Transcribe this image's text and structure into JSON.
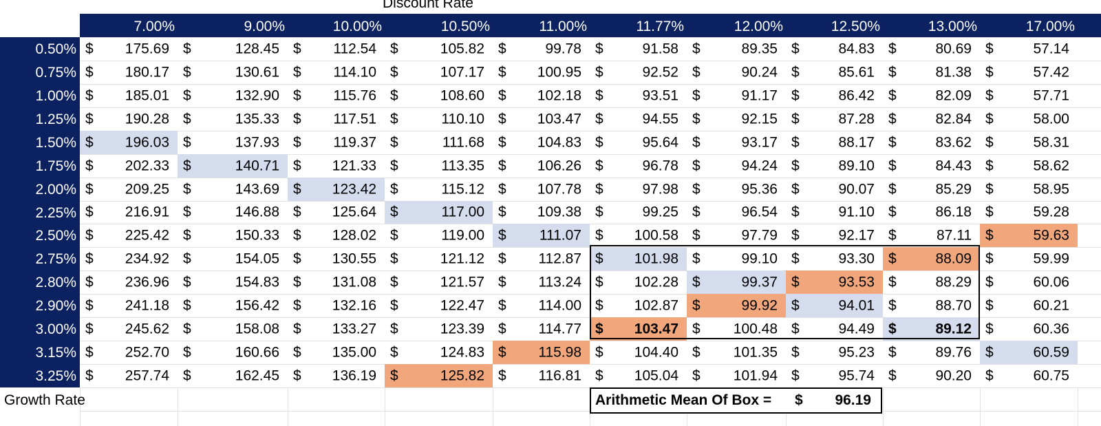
{
  "sheet": {
    "header_title": "Discount Rate",
    "footer_label": "Growth Rate",
    "currency_symbol": "$",
    "mean_label": "Arithmetic Mean Of Box =",
    "mean_currency": "$",
    "mean_value": "96.19"
  },
  "colors": {
    "banner": "#0b2160",
    "highlight_blue": "#d5dcee",
    "highlight_orange": "#f1a77b"
  },
  "discount_rates": [
    "7.00%",
    "9.00%",
    "10.00%",
    "10.50%",
    "11.00%",
    "11.77%",
    "12.00%",
    "12.50%",
    "13.00%",
    "17.00%"
  ],
  "growth_rates": [
    "0.50%",
    "0.75%",
    "1.00%",
    "1.25%",
    "1.50%",
    "1.75%",
    "2.00%",
    "2.25%",
    "2.50%",
    "2.75%",
    "2.80%",
    "2.90%",
    "3.00%",
    "3.15%",
    "3.25%"
  ],
  "values": [
    [
      "175.69",
      "128.45",
      "112.54",
      "105.82",
      "99.78",
      "91.58",
      "89.35",
      "84.83",
      "80.69",
      "57.14"
    ],
    [
      "180.17",
      "130.61",
      "114.10",
      "107.17",
      "100.95",
      "92.52",
      "90.24",
      "85.61",
      "81.38",
      "57.42"
    ],
    [
      "185.01",
      "132.90",
      "115.76",
      "108.60",
      "102.18",
      "93.51",
      "91.17",
      "86.42",
      "82.09",
      "57.71"
    ],
    [
      "190.28",
      "135.33",
      "117.51",
      "110.10",
      "103.47",
      "94.55",
      "92.15",
      "87.28",
      "82.84",
      "58.00"
    ],
    [
      "196.03",
      "137.93",
      "119.37",
      "111.68",
      "104.83",
      "95.64",
      "93.17",
      "88.17",
      "83.62",
      "58.31"
    ],
    [
      "202.33",
      "140.71",
      "121.33",
      "113.35",
      "106.26",
      "96.78",
      "94.24",
      "89.10",
      "84.43",
      "58.62"
    ],
    [
      "209.25",
      "143.69",
      "123.42",
      "115.12",
      "107.78",
      "97.98",
      "95.36",
      "90.07",
      "85.29",
      "58.95"
    ],
    [
      "216.91",
      "146.88",
      "125.64",
      "117.00",
      "109.38",
      "99.25",
      "96.54",
      "91.10",
      "86.18",
      "59.28"
    ],
    [
      "225.42",
      "150.33",
      "128.02",
      "119.00",
      "111.07",
      "100.58",
      "97.79",
      "92.17",
      "87.11",
      "59.63"
    ],
    [
      "234.92",
      "154.05",
      "130.55",
      "121.12",
      "112.87",
      "101.98",
      "99.10",
      "93.30",
      "88.09",
      "59.99"
    ],
    [
      "236.96",
      "154.83",
      "131.08",
      "121.57",
      "113.24",
      "102.28",
      "99.37",
      "93.53",
      "88.29",
      "60.06"
    ],
    [
      "241.18",
      "156.42",
      "132.16",
      "122.47",
      "114.00",
      "102.87",
      "99.92",
      "94.01",
      "88.70",
      "60.21"
    ],
    [
      "245.62",
      "158.08",
      "133.27",
      "123.39",
      "114.77",
      "103.47",
      "100.48",
      "94.49",
      "89.12",
      "60.36"
    ],
    [
      "252.70",
      "160.66",
      "135.00",
      "124.83",
      "115.98",
      "104.40",
      "101.35",
      "95.23",
      "89.76",
      "60.59"
    ],
    [
      "257.74",
      "162.45",
      "136.19",
      "125.82",
      "116.81",
      "105.04",
      "101.94",
      "95.74",
      "90.20",
      "60.75"
    ]
  ],
  "highlights": {
    "blue": [
      [
        4,
        0
      ],
      [
        5,
        1
      ],
      [
        6,
        2
      ],
      [
        7,
        3
      ],
      [
        8,
        4
      ],
      [
        9,
        5
      ],
      [
        10,
        6
      ],
      [
        11,
        7
      ],
      [
        12,
        8
      ],
      [
        13,
        9
      ]
    ],
    "orange": [
      [
        8,
        9
      ],
      [
        9,
        8
      ],
      [
        10,
        7
      ],
      [
        11,
        6
      ],
      [
        12,
        5
      ],
      [
        13,
        4
      ],
      [
        14,
        3
      ]
    ],
    "bold": [
      [
        12,
        5
      ],
      [
        12,
        8
      ]
    ]
  }
}
